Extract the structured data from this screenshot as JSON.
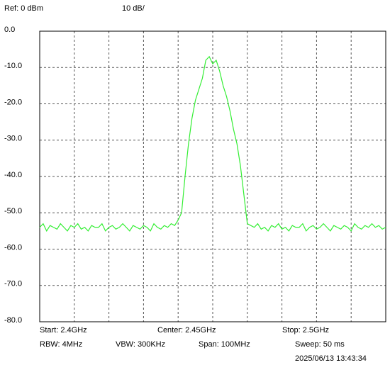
{
  "chart_data": {
    "type": "line",
    "ref_label": "Ref: 0 dBm",
    "scale_label": "10 dB/",
    "start_label": "Start: 2.4GHz",
    "center_label": "Center: 2.45GHz",
    "stop_label": "Stop: 2.5GHz",
    "rbw_label": "RBW: 4MHz",
    "vbw_label": "VBW: 300KHz",
    "span_label": "Span: 100MHz",
    "sweep_label": "Sweep: 50  ms",
    "timestamp": "2025/06/13 13:43:34",
    "xlim": [
      2.4,
      2.5
    ],
    "x_divisions": 10,
    "ylim": [
      -80,
      0
    ],
    "yticks": [
      {
        "value": 0,
        "label": "0.0"
      },
      {
        "value": -10,
        "label": "-10.0"
      },
      {
        "value": -20,
        "label": "-20.0"
      },
      {
        "value": -30,
        "label": "-30.0"
      },
      {
        "value": -40,
        "label": "-40.0"
      },
      {
        "value": -50,
        "label": "-50.0"
      },
      {
        "value": -60,
        "label": "-60.0"
      },
      {
        "value": -70,
        "label": "-70.0"
      },
      {
        "value": -80,
        "label": "-80.0"
      }
    ],
    "grid": true,
    "x": [
      2.4,
      2.401,
      2.402,
      2.403,
      2.404,
      2.405,
      2.406,
      2.407,
      2.408,
      2.409,
      2.41,
      2.411,
      2.412,
      2.413,
      2.414,
      2.415,
      2.416,
      2.417,
      2.418,
      2.419,
      2.42,
      2.421,
      2.422,
      2.423,
      2.424,
      2.425,
      2.426,
      2.427,
      2.428,
      2.429,
      2.43,
      2.431,
      2.432,
      2.433,
      2.434,
      2.435,
      2.436,
      2.437,
      2.438,
      2.439,
      2.44,
      2.441,
      2.442,
      2.443,
      2.444,
      2.445,
      2.446,
      2.447,
      2.448,
      2.449,
      2.45,
      2.451,
      2.452,
      2.453,
      2.454,
      2.455,
      2.456,
      2.457,
      2.458,
      2.459,
      2.46,
      2.461,
      2.462,
      2.463,
      2.464,
      2.465,
      2.466,
      2.467,
      2.468,
      2.469,
      2.47,
      2.471,
      2.472,
      2.473,
      2.474,
      2.475,
      2.476,
      2.477,
      2.478,
      2.479,
      2.48,
      2.481,
      2.482,
      2.483,
      2.484,
      2.485,
      2.486,
      2.487,
      2.488,
      2.489,
      2.49,
      2.491,
      2.492,
      2.493,
      2.494,
      2.495,
      2.496,
      2.497,
      2.498,
      2.499,
      2.5
    ],
    "series": [
      {
        "color": "#33ee33",
        "values": [
          -54,
          -53,
          -55,
          -53.5,
          -54,
          -54.5,
          -53,
          -54,
          -55,
          -53.5,
          -54,
          -53,
          -54.5,
          -54,
          -55,
          -53.5,
          -54,
          -54,
          -53,
          -55,
          -54,
          -53.5,
          -54.5,
          -54,
          -53,
          -54,
          -55,
          -53.5,
          -54,
          -54.5,
          -53.5,
          -54,
          -55,
          -53,
          -54,
          -54.5,
          -53.5,
          -54,
          -53,
          -53.5,
          -52,
          -50,
          -40,
          -31,
          -24,
          -19,
          -16,
          -13,
          -8,
          -7,
          -9,
          -8,
          -11,
          -15,
          -18,
          -22,
          -27,
          -31,
          -37,
          -45,
          -53,
          -53.5,
          -54,
          -53,
          -54.5,
          -54,
          -55,
          -53.5,
          -54,
          -53,
          -54.5,
          -54,
          -55,
          -53.5,
          -54,
          -54,
          -53,
          -55,
          -54,
          -53.5,
          -54.5,
          -54,
          -53,
          -54,
          -55,
          -53.5,
          -54,
          -54.5,
          -53.5,
          -54,
          -55,
          -53,
          -54,
          -54.5,
          -53.5,
          -54,
          -53,
          -54,
          -53.5,
          -54.5,
          -54
        ]
      }
    ]
  }
}
